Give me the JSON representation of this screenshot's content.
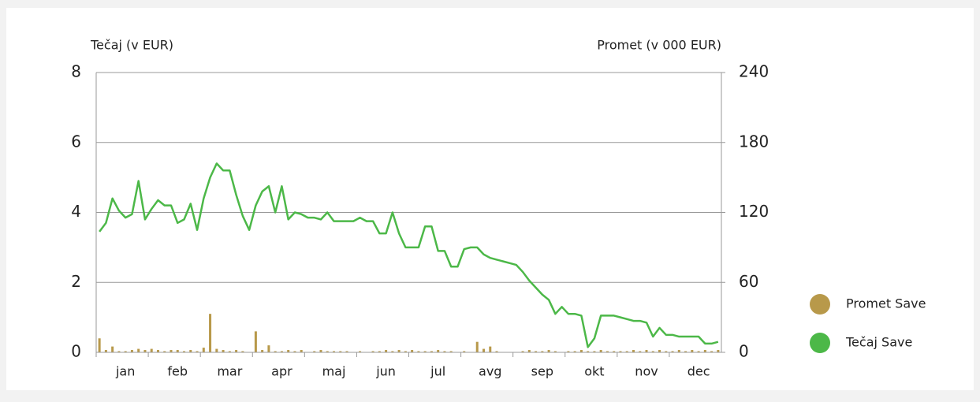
{
  "chart_data": {
    "type": "bar-line",
    "y_label": "Tečaj (v EUR)",
    "y2_label": "Promet (v 000 EUR)",
    "categories": [
      null,
      null,
      null,
      null,
      "jan",
      null,
      null,
      null,
      null,
      null,
      null,
      null,
      "feb",
      null,
      null,
      null,
      null,
      null,
      null,
      null,
      "mar",
      null,
      null,
      null,
      null,
      null,
      null,
      null,
      "apr",
      null,
      null,
      null,
      null,
      null,
      null,
      null,
      "maj",
      null,
      null,
      null,
      null,
      null,
      null,
      null,
      "jun",
      null,
      null,
      null,
      null,
      null,
      null,
      null,
      "jul",
      null,
      null,
      null,
      null,
      null,
      null,
      null,
      "avg",
      null,
      null,
      null,
      null,
      null,
      null,
      null,
      "sep",
      null,
      null,
      null,
      null,
      null,
      null,
      null,
      "okt",
      null,
      null,
      null,
      null,
      null,
      null,
      null,
      "nov",
      null,
      null,
      null,
      null,
      null,
      null,
      null,
      "dec",
      null,
      null,
      null
    ],
    "ylim": [
      0,
      8
    ],
    "yticks": [
      0,
      2,
      4,
      6,
      8
    ],
    "y2lim": [
      0,
      240
    ],
    "y2ticks": [
      0,
      60,
      120,
      180,
      240
    ],
    "grid": true,
    "series": [
      {
        "name": "Promet Save",
        "color": "#b8994a",
        "type": "bar",
        "axis": "y2",
        "values": [
          12,
          2,
          5,
          1,
          1,
          2,
          3,
          2,
          3,
          2,
          1,
          2,
          2,
          1,
          2,
          1,
          4,
          33,
          3,
          2,
          1,
          2,
          1,
          0,
          18,
          2,
          6,
          1,
          1,
          2,
          1,
          2,
          0,
          1,
          2,
          1,
          1,
          1,
          1,
          0,
          1,
          0,
          1,
          1,
          2,
          1,
          2,
          1,
          2,
          1,
          1,
          1,
          2,
          1,
          1,
          0,
          1,
          0,
          9,
          3,
          5,
          1,
          0,
          0,
          0,
          1,
          2,
          1,
          1,
          2,
          1,
          0,
          1,
          1,
          2,
          1,
          1,
          2,
          1,
          1,
          1,
          1,
          2,
          1,
          2,
          1,
          2,
          1,
          1,
          2,
          1,
          2,
          1,
          2,
          1,
          2
        ]
      },
      {
        "name": "Tečaj Save",
        "color": "#4cb848",
        "type": "line",
        "axis": "y",
        "values": [
          3.45,
          3.7,
          4.4,
          4.05,
          3.85,
          3.95,
          4.9,
          3.8,
          4.1,
          4.35,
          4.2,
          4.2,
          3.7,
          3.8,
          4.25,
          3.5,
          4.4,
          5.0,
          5.4,
          5.2,
          5.2,
          4.5,
          3.9,
          3.5,
          4.2,
          4.6,
          4.75,
          4.0,
          4.75,
          3.8,
          4.0,
          3.95,
          3.85,
          3.85,
          3.8,
          4.0,
          3.75,
          3.75,
          3.75,
          3.75,
          3.85,
          3.75,
          3.75,
          3.4,
          3.4,
          4.0,
          3.4,
          3.0,
          3.0,
          3.0,
          3.6,
          3.6,
          2.9,
          2.9,
          2.45,
          2.45,
          2.95,
          3.0,
          3.0,
          2.8,
          2.7,
          2.65,
          2.6,
          2.55,
          2.5,
          2.3,
          2.05,
          1.85,
          1.65,
          1.5,
          1.1,
          1.3,
          1.1,
          1.1,
          1.05,
          0.15,
          0.4,
          1.05,
          1.05,
          1.05,
          1.0,
          0.95,
          0.9,
          0.9,
          0.85,
          0.45,
          0.7,
          0.5,
          0.5,
          0.45,
          0.45,
          0.45,
          0.45,
          0.25,
          0.25,
          0.3
        ]
      }
    ]
  }
}
